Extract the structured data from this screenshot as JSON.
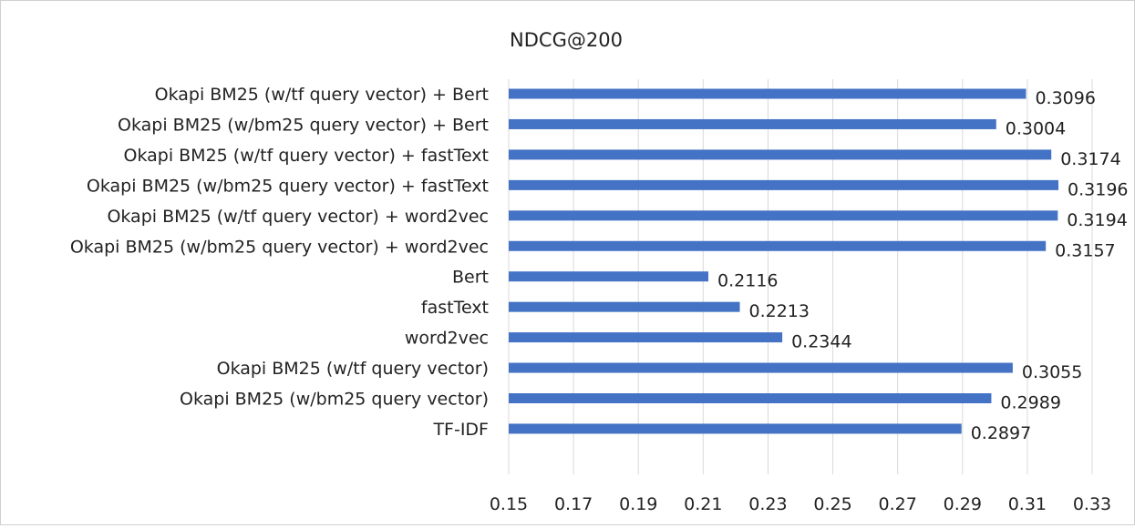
{
  "chart_data": {
    "type": "bar",
    "orientation": "horizontal",
    "title": "NDCG@200",
    "xlabel": "",
    "ylabel": "",
    "xlim": [
      0.15,
      0.33
    ],
    "xticks": [
      "0.15",
      "0.17",
      "0.19",
      "0.21",
      "0.23",
      "0.25",
      "0.27",
      "0.29",
      "0.31",
      "0.33"
    ],
    "grid": true,
    "legend": "none",
    "bar_color": "#4472C4",
    "categories": [
      "Okapi BM25 (w/tf query vector) + Bert",
      "Okapi BM25 (w/bm25 query vector) + Bert",
      "Okapi BM25 (w/tf query vector) + fastText",
      "Okapi BM25 (w/bm25 query vector) + fastText",
      "Okapi BM25 (w/tf query vector) + word2vec",
      "Okapi BM25 (w/bm25 query vector) + word2vec",
      "Bert",
      "fastText",
      "word2vec",
      "Okapi BM25 (w/tf query vector)",
      "Okapi BM25 (w/bm25 query vector)",
      "TF-IDF"
    ],
    "values": [
      0.3096,
      0.3004,
      0.3174,
      0.3196,
      0.3194,
      0.3157,
      0.2116,
      0.2213,
      0.2344,
      0.3055,
      0.2989,
      0.2897
    ],
    "data_labels": [
      "0.3096",
      "0.3004",
      "0.3174",
      "0.3196",
      "0.3194",
      "0.3157",
      "0.2116",
      "0.2213",
      "0.2344",
      "0.3055",
      "0.2989",
      "0.2897"
    ]
  }
}
